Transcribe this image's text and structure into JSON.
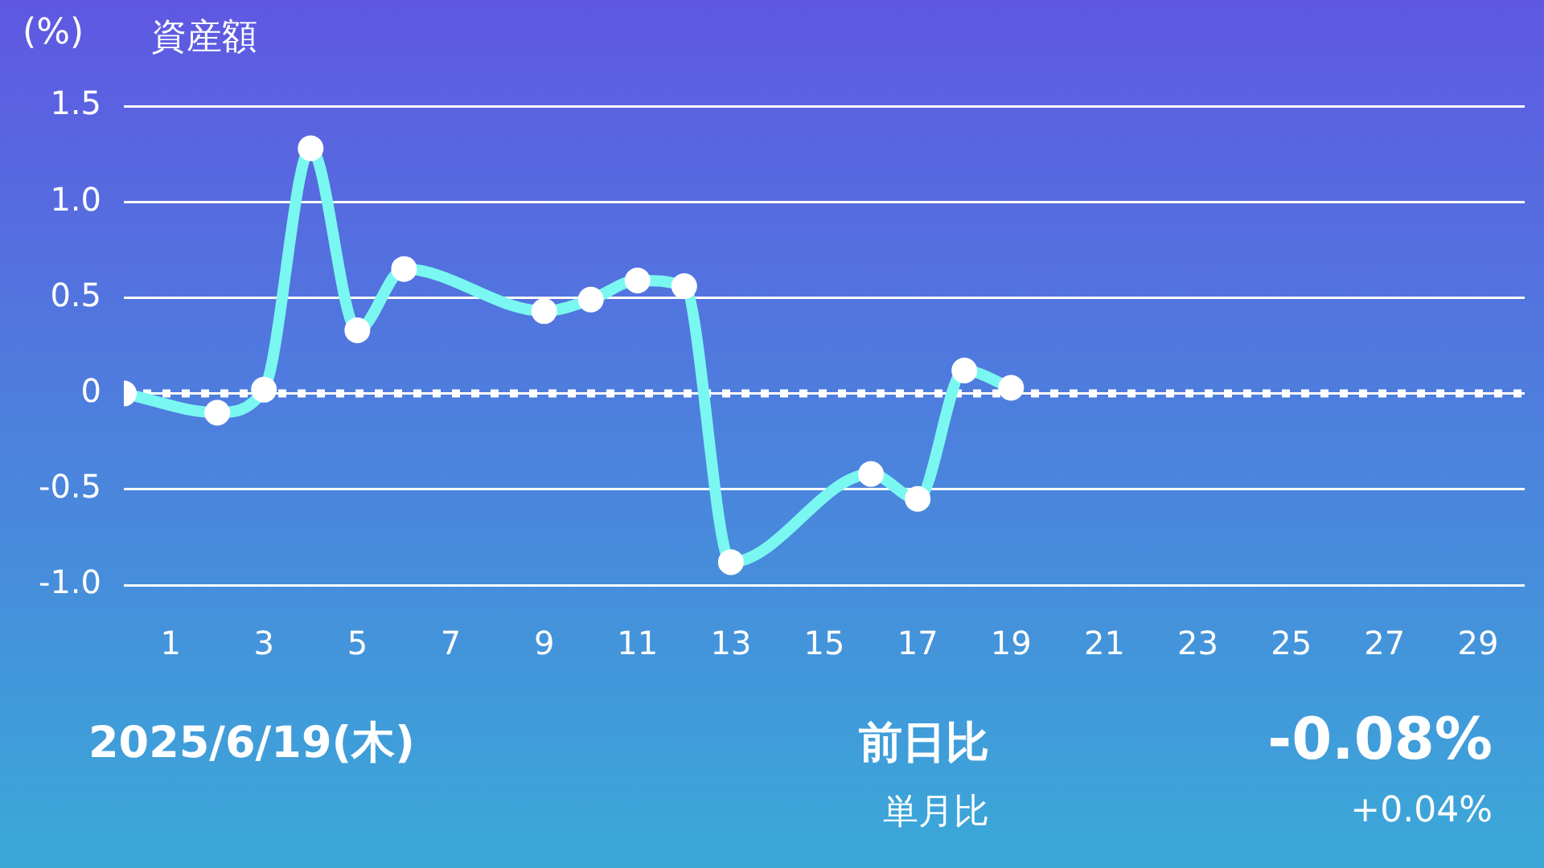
{
  "chart_data": {
    "type": "line",
    "title": "資産額",
    "ylabel": "(%)",
    "x": [
      0,
      2,
      3,
      4,
      5,
      6,
      9,
      10,
      11,
      12,
      13,
      16,
      17,
      18,
      19
    ],
    "series": [
      {
        "color": "#7af7f0",
        "values": [
          0,
          -0.1,
          0.02,
          1.28,
          0.33,
          0.65,
          0.43,
          0.49,
          0.59,
          0.56,
          -0.88,
          -0.42,
          -0.55,
          0.12,
          0.03
        ]
      }
    ],
    "xlim": [
      0,
      30
    ],
    "xticks": [
      1,
      3,
      5,
      7,
      9,
      11,
      13,
      15,
      17,
      19,
      21,
      23,
      25,
      27,
      29
    ],
    "ylim": [
      -1,
      1.5
    ],
    "yticks": [
      {
        "value": -1,
        "label": "-1.0"
      },
      -0.5,
      0,
      0.5,
      {
        "value": 1,
        "label": "1.0"
      },
      1.5
    ],
    "ref_lines": [
      {
        "axis": "y",
        "value": 0,
        "color": "#ffffff",
        "line_style": "dotted"
      }
    ],
    "grid": "y",
    "marker": "circle",
    "line_style": "solid",
    "annotations": [
      "2025/6/19(木)",
      "前日比",
      "-0.08%",
      "単月比",
      "+0.04%"
    ]
  }
}
